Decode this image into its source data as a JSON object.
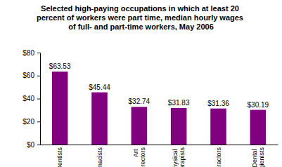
{
  "chart_data": {
    "type": "bar",
    "title": "Selected high-paying occupations in which at least 20 percent of workers were part time, median hourly wages of full- and part-time workers, May 2006",
    "categories": [
      "Dentists",
      "Pharmacists",
      "Art directors",
      "Physical therapists",
      "Chiropractors",
      "Dental hygienists"
    ],
    "values": [
      63.53,
      45.44,
      32.74,
      31.83,
      31.36,
      30.19
    ],
    "value_labels": [
      "$63.53",
      "$45.44",
      "$32.74",
      "$31.83",
      "$31.36",
      "$30.19"
    ],
    "color": "#800080",
    "ylim": [
      0,
      80
    ],
    "yticks": [
      {
        "value": 0,
        "label": "$0"
      },
      {
        "value": 20,
        "label": "$20"
      },
      {
        "value": 40,
        "label": "$40"
      },
      {
        "value": 60,
        "label": "$60"
      },
      {
        "value": 80,
        "label": "$80"
      }
    ],
    "grid": false,
    "data_labels": true
  }
}
